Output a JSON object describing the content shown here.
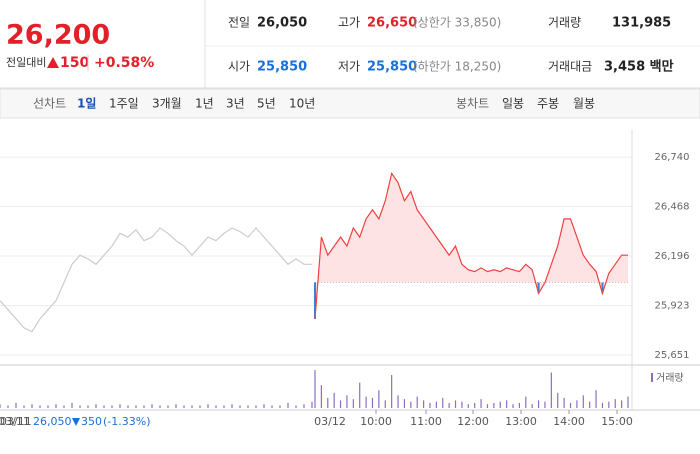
{
  "header": {
    "price": "26,200",
    "change_label": "전일대비",
    "change": "150",
    "change_rate": "+0.58%"
  },
  "stats": [
    {
      "label": "전일",
      "value": "26,050"
    },
    {
      "label": "고가",
      "value": "26,650",
      "note": "(상한가 33,850)"
    },
    {
      "label": "거래량",
      "value": "131,985"
    },
    {
      "label": "시가",
      "value": "25,850"
    },
    {
      "label": "저가",
      "value": "25,850",
      "note": "(하한가 18,250)"
    },
    {
      "label": "거래대금",
      "value": "3,458 백만"
    }
  ],
  "tabs": {
    "line_label": "선차트",
    "line": [
      "1일",
      "1주일",
      "3개월",
      "1년",
      "3년",
      "5년",
      "10년"
    ],
    "candle_label": "봉차트",
    "candle": [
      "일봉",
      "주봉",
      "월봉"
    ]
  },
  "chart_data": {
    "type": "line",
    "ylim": [
      25596,
      26834
    ],
    "yticks": [
      {
        "value": 26740,
        "label": "26,740"
      },
      {
        "value": 26468,
        "label": "26,468"
      },
      {
        "value": 26196,
        "label": "26,196"
      },
      {
        "value": 25923,
        "label": "25,923"
      },
      {
        "value": 25651,
        "label": "25,651"
      }
    ],
    "base": 26050,
    "series": [
      {
        "date": "03/11",
        "color": "#cccccc",
        "values": [
          25950,
          25900,
          25850,
          25800,
          25780,
          25850,
          25900,
          25950,
          26050,
          26150,
          26200,
          26180,
          26150,
          26200,
          26250,
          26320,
          26300,
          26340,
          26280,
          26300,
          26350,
          26320,
          26280,
          26250,
          26200,
          26250,
          26300,
          26280,
          26320,
          26350,
          26330,
          26300,
          26350,
          26300,
          26250,
          26200,
          26150,
          26180,
          26150,
          26150
        ],
        "volume": [
          3,
          2,
          4,
          2,
          3,
          2,
          2,
          3,
          2,
          4,
          2,
          2,
          3,
          2,
          2,
          3,
          2,
          2,
          2,
          3,
          2,
          2,
          3,
          2,
          2,
          2,
          3,
          2,
          2,
          3,
          2,
          2,
          2,
          3,
          2,
          2,
          4,
          2,
          3,
          5
        ]
      },
      {
        "date": "03/12",
        "color": "#f04040",
        "fill": "#fde3e3",
        "below_color": "#3a7fd8",
        "values": [
          25850,
          26300,
          26200,
          26250,
          26300,
          26250,
          26350,
          26300,
          26400,
          26450,
          26400,
          26500,
          26650,
          26600,
          26500,
          26550,
          26450,
          26400,
          26350,
          26300,
          26250,
          26200,
          26250,
          26150,
          26120,
          26110,
          26130,
          26110,
          26120,
          26110,
          26130,
          26120,
          26110,
          26150,
          26120,
          25990,
          26050,
          26150,
          26250,
          26400,
          26400,
          26300,
          26200,
          26150,
          26110,
          25990,
          26100,
          26150,
          26200,
          26200
        ],
        "volume": [
          30,
          18,
          8,
          12,
          6,
          10,
          7,
          20,
          9,
          8,
          14,
          6,
          26,
          10,
          7,
          5,
          9,
          6,
          4,
          5,
          8,
          4,
          6,
          5,
          3,
          4,
          7,
          3,
          4,
          5,
          6,
          3,
          4,
          9,
          3,
          6,
          5,
          28,
          12,
          8,
          4,
          6,
          10,
          5,
          14,
          4,
          5,
          7,
          6,
          9
        ]
      }
    ],
    "time_labels": [
      "10:00",
      "11:00",
      "12:00",
      "13:00",
      "14:00",
      "15:00"
    ],
    "volume_name": "거래량",
    "volume_color": "#8a6fc0",
    "footer": {
      "change": "350",
      "rate": "(-1.33%)"
    }
  }
}
